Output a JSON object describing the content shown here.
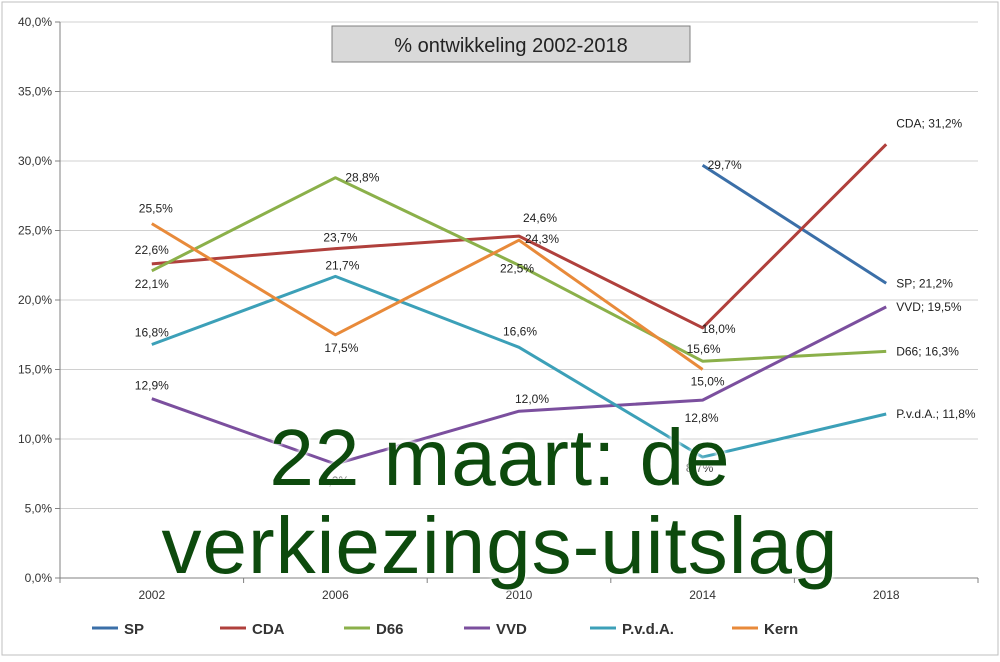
{
  "chart_data": {
    "type": "line",
    "title": "% ontwikkeling 2002-2018",
    "categories": [
      "2002",
      "2006",
      "2010",
      "2014",
      "2018"
    ],
    "ylim": [
      0,
      40
    ],
    "yticks": [
      "0,0%",
      "5,0%",
      "10,0%",
      "15,0%",
      "20,0%",
      "25,0%",
      "30,0%",
      "35,0%",
      "40,0%"
    ],
    "grid": true,
    "legend_position": "bottom",
    "series": [
      {
        "name": "SP",
        "color": "#3b6fa8",
        "values": [
          null,
          null,
          null,
          29.7,
          21.2
        ],
        "labels": [
          "",
          "",
          "",
          "29,7%",
          "SP; 21,2%"
        ]
      },
      {
        "name": "CDA",
        "color": "#b0403c",
        "values": [
          22.6,
          23.7,
          24.6,
          18.0,
          31.2
        ],
        "labels": [
          "22,6%",
          "23,7%",
          "24,6%",
          "18,0%",
          "CDA; 31,2%"
        ]
      },
      {
        "name": "D66",
        "color": "#8bb04a",
        "values": [
          22.1,
          28.8,
          22.5,
          15.6,
          16.3
        ],
        "labels": [
          "22,1%",
          "28,8%",
          "22,5%",
          "15,6%",
          "D66; 16,3%"
        ]
      },
      {
        "name": "VVD",
        "color": "#7b4f9e",
        "values": [
          12.9,
          8.2,
          12.0,
          12.8,
          19.5
        ],
        "labels": [
          "12,9%",
          "8,2%",
          "12,0%",
          "12,8%",
          "VVD; 19,5%"
        ]
      },
      {
        "name": "P.v.d.A.",
        "color": "#3ca0b8",
        "values": [
          16.8,
          21.7,
          16.6,
          8.7,
          11.8
        ],
        "labels": [
          "16,8%",
          "21,7%",
          "16,6%",
          "8,7%",
          "P.v.d.A.; 11,8%"
        ]
      },
      {
        "name": "Kern",
        "color": "#e88a3a",
        "values": [
          25.5,
          17.5,
          24.3,
          15.0,
          null
        ],
        "labels": [
          "25,5%",
          "17,5%",
          "24,3%",
          "15,0%",
          ""
        ]
      }
    ]
  },
  "overlay": {
    "line1": "22 maart: de",
    "line2": "verkiezings-uitslag"
  }
}
